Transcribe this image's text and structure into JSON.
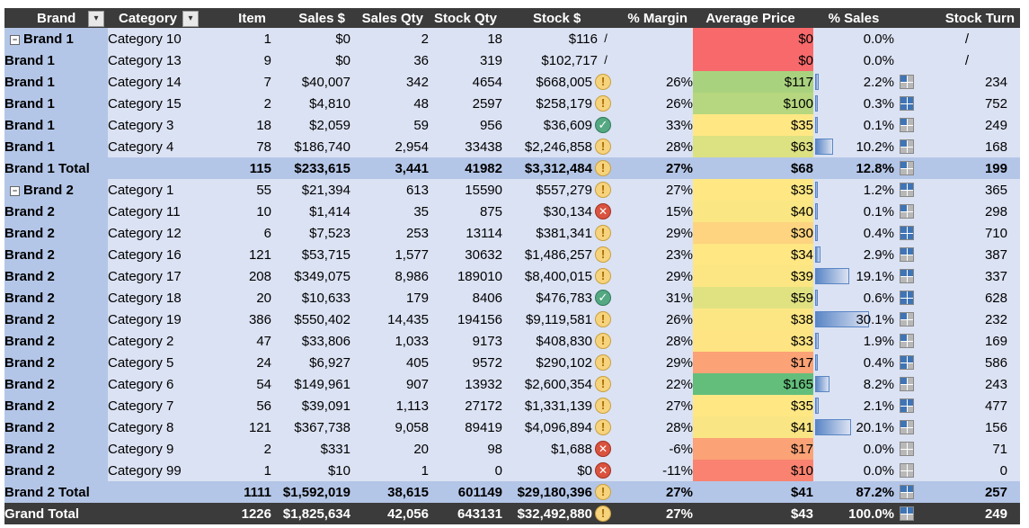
{
  "headers": {
    "brand": "Brand",
    "category": "Category",
    "item": "Item",
    "sales": "Sales $",
    "sales_qty": "Sales Qty",
    "stock_qty": "Stock Qty",
    "stock_value": "Stock $",
    "margin": "% Margin",
    "avg_price": "Average Price",
    "pct_sales": "% Sales",
    "stock_turn": "Stock Turn"
  },
  "rows": [
    {
      "kind": "data",
      "first": true,
      "brand": "Brand 1",
      "category": "Category 10",
      "item": "1",
      "sales": "$0",
      "sales_qty": "2",
      "stock_qty": "18",
      "stock": "$116",
      "stock_icon": "na",
      "margin": "",
      "avg": "$0",
      "avg_color": "#f8696b",
      "pct": "0.0%",
      "pct_value": 0.0,
      "turn": "/",
      "turn_icon": "none"
    },
    {
      "kind": "data",
      "brand": "Brand 1",
      "category": "Category 13",
      "item": "9",
      "sales": "$0",
      "sales_qty": "36",
      "stock_qty": "319",
      "stock": "$102,717",
      "stock_icon": "na",
      "margin": "",
      "avg": "$0",
      "avg_color": "#f8696b",
      "pct": "0.0%",
      "pct_value": 0.0,
      "turn": "/",
      "turn_icon": "none"
    },
    {
      "kind": "data",
      "brand": "Brand 1",
      "category": "Category 14",
      "item": "7",
      "sales": "$40,007",
      "sales_qty": "342",
      "stock_qty": "4654",
      "stock": "$668,005",
      "stock_icon": "warn",
      "margin": "26%",
      "avg": "$117",
      "avg_color": "#a9d27f",
      "pct": "2.2%",
      "pct_value": 2.2,
      "turn": "234",
      "turn_icon": 1
    },
    {
      "kind": "data",
      "brand": "Brand 1",
      "category": "Category 15",
      "item": "2",
      "sales": "$4,810",
      "sales_qty": "48",
      "stock_qty": "2597",
      "stock": "$258,179",
      "stock_icon": "warn",
      "margin": "26%",
      "avg": "$100",
      "avg_color": "#b6d77f",
      "pct": "0.3%",
      "pct_value": 0.3,
      "turn": "752",
      "turn_icon": 4
    },
    {
      "kind": "data",
      "brand": "Brand 1",
      "category": "Category 3",
      "item": "18",
      "sales": "$2,059",
      "sales_qty": "59",
      "stock_qty": "956",
      "stock": "$36,609",
      "stock_icon": "ok",
      "margin": "33%",
      "avg": "$35",
      "avg_color": "#ffe884",
      "pct": "0.1%",
      "pct_value": 0.1,
      "turn": "249",
      "turn_icon": 1
    },
    {
      "kind": "data",
      "brand": "Brand 1",
      "category": "Category 4",
      "item": "78",
      "sales": "$186,740",
      "sales_qty": "2,954",
      "stock_qty": "33438",
      "stock": "$2,246,858",
      "stock_icon": "warn",
      "margin": "28%",
      "avg": "$63",
      "avg_color": "#dce182",
      "pct": "10.2%",
      "pct_value": 10.2,
      "turn": "168",
      "turn_icon": 1
    },
    {
      "kind": "subtotal",
      "label": "Brand 1 Total",
      "item": "115",
      "sales": "$233,615",
      "sales_qty": "3,441",
      "stock_qty": "41982",
      "stock": "$3,312,484",
      "stock_icon": "warn",
      "margin": "27%",
      "avg": "$68",
      "pct": "12.8%",
      "pct_value": 12.8,
      "turn": "199",
      "turn_icon": 1
    },
    {
      "kind": "data",
      "first": true,
      "brand": "Brand 2",
      "category": "Category 1",
      "item": "55",
      "sales": "$21,394",
      "sales_qty": "613",
      "stock_qty": "15590",
      "stock": "$557,279",
      "stock_icon": "warn",
      "margin": "27%",
      "avg": "$35",
      "avg_color": "#ffe884",
      "pct": "1.2%",
      "pct_value": 1.2,
      "turn": "365",
      "turn_icon": 2
    },
    {
      "kind": "data",
      "brand": "Brand 2",
      "category": "Category 11",
      "item": "10",
      "sales": "$1,414",
      "sales_qty": "35",
      "stock_qty": "875",
      "stock": "$30,134",
      "stock_icon": "bad",
      "margin": "15%",
      "avg": "$40",
      "avg_color": "#fae683",
      "pct": "0.1%",
      "pct_value": 0.1,
      "turn": "298",
      "turn_icon": 1
    },
    {
      "kind": "data",
      "brand": "Brand 2",
      "category": "Category 12",
      "item": "6",
      "sales": "$7,523",
      "sales_qty": "253",
      "stock_qty": "13114",
      "stock": "$381,341",
      "stock_icon": "warn",
      "margin": "29%",
      "avg": "$30",
      "avg_color": "#fed480",
      "pct": "0.4%",
      "pct_value": 0.4,
      "turn": "710",
      "turn_icon": 4
    },
    {
      "kind": "data",
      "brand": "Brand 2",
      "category": "Category 16",
      "item": "121",
      "sales": "$53,715",
      "sales_qty": "1,577",
      "stock_qty": "30632",
      "stock": "$1,486,257",
      "stock_icon": "warn",
      "margin": "23%",
      "avg": "$34",
      "avg_color": "#ffe784",
      "pct": "2.9%",
      "pct_value": 2.9,
      "turn": "387",
      "turn_icon": 2
    },
    {
      "kind": "data",
      "brand": "Brand 2",
      "category": "Category 17",
      "item": "208",
      "sales": "$349,075",
      "sales_qty": "8,986",
      "stock_qty": "189010",
      "stock": "$8,400,015",
      "stock_icon": "warn",
      "margin": "29%",
      "avg": "$39",
      "avg_color": "#fbe683",
      "pct": "19.1%",
      "pct_value": 19.1,
      "turn": "337",
      "turn_icon": 2
    },
    {
      "kind": "data",
      "brand": "Brand 2",
      "category": "Category 18",
      "item": "20",
      "sales": "$10,633",
      "sales_qty": "179",
      "stock_qty": "8406",
      "stock": "$476,783",
      "stock_icon": "ok",
      "margin": "31%",
      "avg": "$59",
      "avg_color": "#e0e282",
      "pct": "0.6%",
      "pct_value": 0.6,
      "turn": "628",
      "turn_icon": 4
    },
    {
      "kind": "data",
      "brand": "Brand 2",
      "category": "Category 19",
      "item": "386",
      "sales": "$550,402",
      "sales_qty": "14,435",
      "stock_qty": "194156",
      "stock": "$9,119,581",
      "stock_icon": "warn",
      "margin": "26%",
      "avg": "$38",
      "avg_color": "#fce683",
      "pct": "30.1%",
      "pct_value": 30.1,
      "turn": "232",
      "turn_icon": 1
    },
    {
      "kind": "data",
      "brand": "Brand 2",
      "category": "Category 2",
      "item": "47",
      "sales": "$33,806",
      "sales_qty": "1,033",
      "stock_qty": "9173",
      "stock": "$408,830",
      "stock_icon": "warn",
      "margin": "28%",
      "avg": "$33",
      "avg_color": "#ffe483",
      "pct": "1.9%",
      "pct_value": 1.9,
      "turn": "169",
      "turn_icon": 1
    },
    {
      "kind": "data",
      "brand": "Brand 2",
      "category": "Category 5",
      "item": "24",
      "sales": "$6,927",
      "sales_qty": "405",
      "stock_qty": "9572",
      "stock": "$290,102",
      "stock_icon": "warn",
      "margin": "29%",
      "avg": "$17",
      "avg_color": "#fba276",
      "pct": "0.4%",
      "pct_value": 0.4,
      "turn": "586",
      "turn_icon": 3
    },
    {
      "kind": "data",
      "brand": "Brand 2",
      "category": "Category 6",
      "item": "54",
      "sales": "$149,961",
      "sales_qty": "907",
      "stock_qty": "13932",
      "stock": "$2,600,354",
      "stock_icon": "warn",
      "margin": "22%",
      "avg": "$165",
      "avg_color": "#63be7b",
      "pct": "8.2%",
      "pct_value": 8.2,
      "turn": "243",
      "turn_icon": 1
    },
    {
      "kind": "data",
      "brand": "Brand 2",
      "category": "Category 7",
      "item": "56",
      "sales": "$39,091",
      "sales_qty": "1,113",
      "stock_qty": "27172",
      "stock": "$1,331,139",
      "stock_icon": "warn",
      "margin": "27%",
      "avg": "$35",
      "avg_color": "#ffe884",
      "pct": "2.1%",
      "pct_value": 2.1,
      "turn": "477",
      "turn_icon": 3
    },
    {
      "kind": "data",
      "brand": "Brand 2",
      "category": "Category 8",
      "item": "121",
      "sales": "$367,738",
      "sales_qty": "9,058",
      "stock_qty": "89419",
      "stock": "$4,096,894",
      "stock_icon": "warn",
      "margin": "28%",
      "avg": "$41",
      "avg_color": "#f9e583",
      "pct": "20.1%",
      "pct_value": 20.1,
      "turn": "156",
      "turn_icon": 1
    },
    {
      "kind": "data",
      "brand": "Brand 2",
      "category": "Category 9",
      "item": "2",
      "sales": "$331",
      "sales_qty": "20",
      "stock_qty": "98",
      "stock": "$1,688",
      "stock_icon": "bad",
      "margin": "-6%",
      "avg": "$17",
      "avg_color": "#fba276",
      "pct": "0.0%",
      "pct_value": 0.0,
      "turn": "71",
      "turn_icon": 0
    },
    {
      "kind": "data",
      "brand": "Brand 2",
      "category": "Category 99",
      "item": "1",
      "sales": "$10",
      "sales_qty": "1",
      "stock_qty": "0",
      "stock": "$0",
      "stock_icon": "bad",
      "margin": "-11%",
      "avg": "$10",
      "avg_color": "#f98370",
      "pct": "0.0%",
      "pct_value": 0.0,
      "turn": "0",
      "turn_icon": 0
    },
    {
      "kind": "subtotal",
      "label": "Brand 2 Total",
      "item": "1111",
      "sales": "$1,592,019",
      "sales_qty": "38,615",
      "stock_qty": "601149",
      "stock": "$29,180,396",
      "stock_icon": "warn",
      "margin": "27%",
      "avg": "$41",
      "pct": "87.2%",
      "pct_value": 87.2,
      "turn": "257",
      "turn_icon": 2
    },
    {
      "kind": "grand",
      "label": "Grand Total",
      "item": "1226",
      "sales": "$1,825,634",
      "sales_qty": "42,056",
      "stock_qty": "643131",
      "stock": "$32,492,880",
      "stock_icon": "warn",
      "margin": "27%",
      "avg": "$43",
      "pct": "100.0%",
      "pct_value": 100.0,
      "turn": "249",
      "turn_icon": 2
    }
  ],
  "icons": {
    "warn": "!",
    "ok": "✓",
    "bad": "✕",
    "na": "/"
  }
}
